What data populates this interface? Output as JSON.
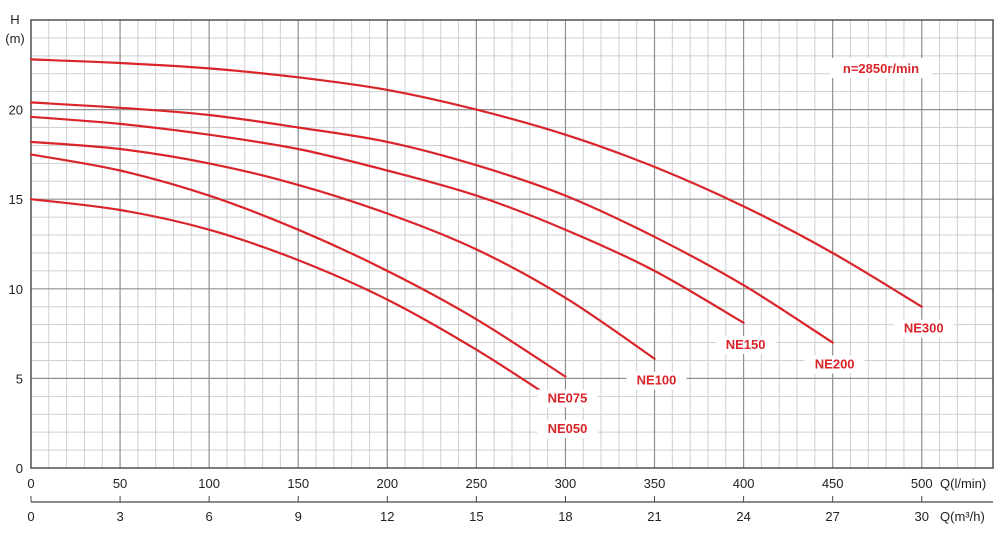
{
  "chart_data": {
    "type": "line",
    "ylabel_line1": "H",
    "ylabel_line2": "(m)",
    "xlabel": "Q(l/min)",
    "x2label": "Q(m³/h)",
    "annotation": "n=2850r/min",
    "xlim": [
      0,
      540
    ],
    "ylim": [
      0,
      25
    ],
    "x_ticks": [
      0,
      50,
      100,
      150,
      200,
      250,
      300,
      350,
      400,
      450,
      500
    ],
    "x_tick_labels": [
      "0",
      "50",
      "100",
      "150",
      "200",
      "250",
      "300",
      "350",
      "400",
      "450",
      "500"
    ],
    "x2_ticks": [
      0,
      50,
      100,
      150,
      200,
      250,
      300,
      350,
      400,
      450,
      500
    ],
    "x2_tick_labels": [
      "0",
      "3",
      "6",
      "9",
      "12",
      "15",
      "18",
      "21",
      "24",
      "27",
      "30"
    ],
    "y_ticks": [
      0,
      5,
      10,
      15,
      20
    ],
    "y_tick_labels": [
      "0",
      "5",
      "10",
      "15",
      "20"
    ],
    "grid": true,
    "line_color": "#d9252a",
    "series": [
      {
        "name": "NE050",
        "x": [
          0,
          50,
          100,
          150,
          200,
          250,
          300
        ],
        "y": [
          15.0,
          14.4,
          13.3,
          11.6,
          9.4,
          6.6,
          3.4
        ]
      },
      {
        "name": "NE075",
        "x": [
          0,
          50,
          100,
          150,
          200,
          250,
          300
        ],
        "y": [
          17.5,
          16.6,
          15.2,
          13.3,
          11.0,
          8.3,
          5.1
        ]
      },
      {
        "name": "NE100",
        "x": [
          0,
          50,
          100,
          150,
          200,
          250,
          300,
          350
        ],
        "y": [
          18.2,
          17.8,
          17.0,
          15.8,
          14.2,
          12.2,
          9.5,
          6.1
        ]
      },
      {
        "name": "NE150",
        "x": [
          0,
          50,
          100,
          150,
          200,
          250,
          300,
          350,
          400
        ],
        "y": [
          19.6,
          19.2,
          18.6,
          17.8,
          16.6,
          15.2,
          13.3,
          11.0,
          8.1
        ]
      },
      {
        "name": "NE200",
        "x": [
          0,
          50,
          100,
          150,
          200,
          250,
          300,
          350,
          400,
          450
        ],
        "y": [
          20.4,
          20.1,
          19.7,
          19.0,
          18.2,
          16.9,
          15.2,
          12.9,
          10.2,
          7.0
        ]
      },
      {
        "name": "NE300",
        "x": [
          0,
          50,
          100,
          150,
          200,
          250,
          300,
          350,
          400,
          450,
          500
        ],
        "y": [
          22.8,
          22.6,
          22.3,
          21.8,
          21.1,
          20.0,
          18.6,
          16.8,
          14.6,
          12.0,
          9.0
        ]
      }
    ]
  }
}
